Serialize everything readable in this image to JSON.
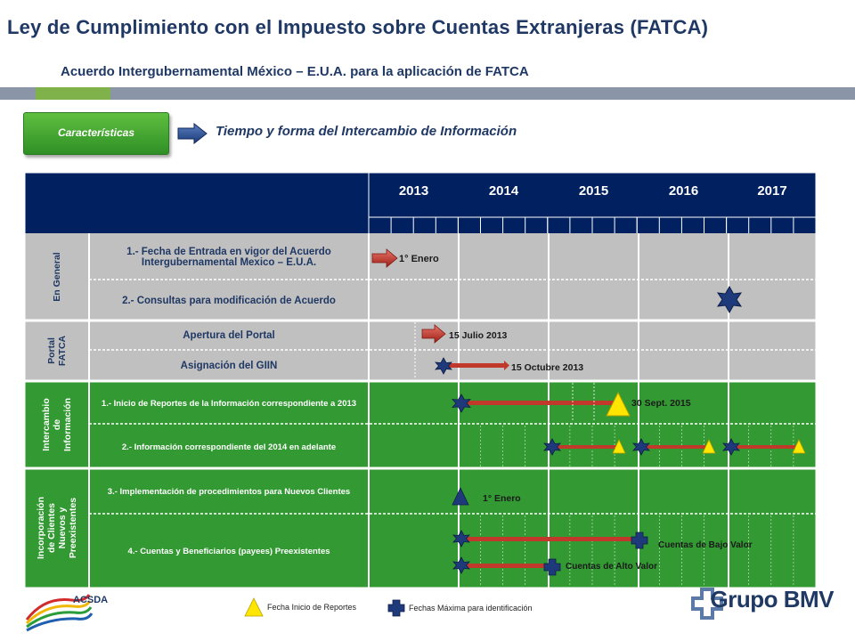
{
  "header": {
    "title": "Ley de Cumplimiento  con el Impuesto sobre Cuentas Extranjeras  (FATCA)",
    "subtitle": "Acuerdo Intergubernamental México – E.U.A.  para la aplicación de FATCA"
  },
  "badge": {
    "label": "Características"
  },
  "section": {
    "heading": "Tiempo y forma del Intercambio de Información"
  },
  "timeline": {
    "years": [
      "2013",
      "2014",
      "2015",
      "2016",
      "2017"
    ],
    "groups": [
      {
        "label": "En General",
        "rows": [
          "1.- Fecha de Entrada en vigor del Acuerdo Intergubernamental Mexico – E.U.A.",
          "2.- Consultas para modificación de Acuerdo"
        ]
      },
      {
        "label": "Portal FATCA",
        "rows": [
          "Apertura del Portal",
          "Asignación del GIIN"
        ]
      },
      {
        "label": "Intercambio de Información",
        "rows": [
          "1.- Inicio de Reportes de la Información correspondiente a 2013",
          "2.- Información correspondiente del 2014 en adelante"
        ]
      },
      {
        "label": "Incorporación de Clientes Nuevos y Preexistentes",
        "rows": [
          "3.- Implementación de procedimientos para Nuevos Clientes",
          "4.- Cuentas y Beneficiarios (payees) Preexistentes"
        ]
      }
    ],
    "annotations": {
      "entrada_vigor": "1° Enero",
      "apertura_portal": "15 Julio 2013",
      "giin": "15 Octubre 2013",
      "inicio_reportes": "30 Sept. 2015",
      "nuevos_clientes": "1° Enero",
      "bajo_valor": "Cuentas de Bajo Valor",
      "alto_valor": "Cuentas de  Alto Valor"
    }
  },
  "legend": {
    "triangle_label": "Fecha  Inicio de Reportes",
    "cross_label": "Fechas Máxima para identificación"
  },
  "footer": {
    "left_logo_text": "ACSDA",
    "brand": "Grupo BMV"
  },
  "colors": {
    "navy": "#002060",
    "gray_row": "#c0c0c0",
    "green_row": "#339933",
    "accent_red": "#c0392b",
    "yellow": "#ffe600"
  }
}
